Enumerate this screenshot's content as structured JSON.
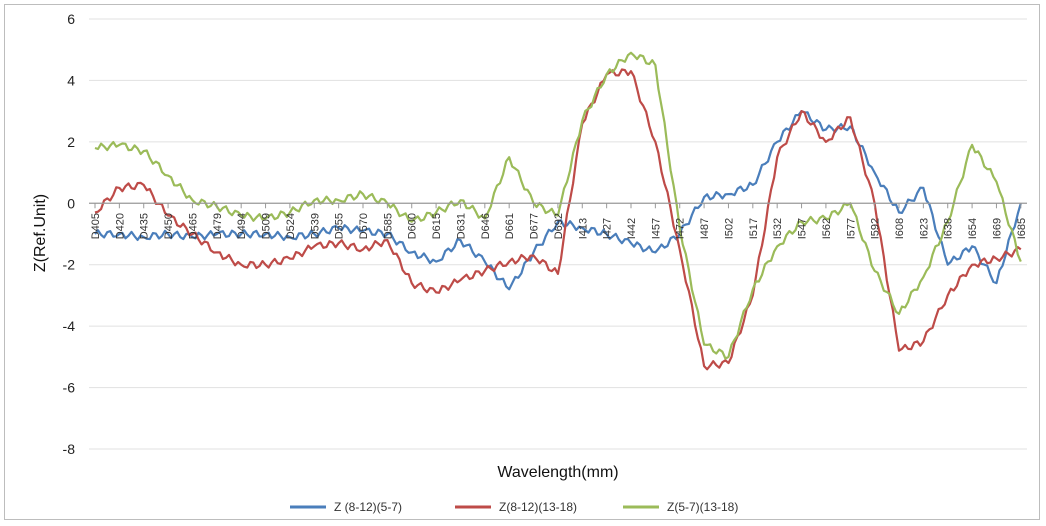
{
  "chart_data": {
    "type": "line",
    "title": "",
    "xlabel": "Wavelength(mm)",
    "ylabel": "Z(Ref.Unit)",
    "ylim": [
      -8,
      6
    ],
    "yticks": [
      6,
      4,
      2,
      0,
      -2,
      -4,
      -6,
      -8
    ],
    "grid": true,
    "legend_position": "bottom",
    "x_tick_labels": [
      "D405",
      "D420",
      "D435",
      "D450",
      "D465",
      "D479",
      "D494",
      "D509",
      "D524",
      "D539",
      "D555",
      "D570",
      "D585",
      "D600",
      "D615",
      "D631",
      "D646",
      "D661",
      "D677",
      "D692",
      "I413",
      "I427",
      "I442",
      "I457",
      "I472",
      "I487",
      "I502",
      "I517",
      "I532",
      "I547",
      "I562",
      "I577",
      "I592",
      "I608",
      "I623",
      "I638",
      "I654",
      "I669",
      "I685"
    ],
    "series": [
      {
        "name": "Z (8-12)(5-7)",
        "color": "#4a7ebb",
        "values": [
          -1.0,
          -1.0,
          -1.1,
          -1.0,
          -1.1,
          -1.0,
          -1.0,
          -1.0,
          -1.1,
          -1.0,
          -0.8,
          -0.9,
          -1.0,
          -1.6,
          -1.9,
          -1.2,
          -1.9,
          -2.8,
          -1.6,
          -0.6,
          -0.8,
          -1.0,
          -1.3,
          -1.6,
          -1.0,
          0.2,
          0.3,
          0.6,
          2.0,
          3.0,
          2.4,
          2.5,
          1.0,
          -0.3,
          0.5,
          -2.0,
          -1.4,
          -2.6,
          0.0
        ]
      },
      {
        "name": "Z(8-12)(13-18)",
        "color": "#be4b48",
        "values": [
          -0.3,
          0.5,
          0.6,
          -0.4,
          -1.0,
          -1.6,
          -2.0,
          -2.0,
          -1.8,
          -1.4,
          -1.3,
          -1.5,
          -1.2,
          -2.6,
          -2.9,
          -2.5,
          -2.2,
          -1.9,
          -1.7,
          -2.3,
          2.6,
          4.2,
          4.3,
          2.0,
          -1.5,
          -5.3,
          -5.2,
          -3.0,
          1.5,
          3.0,
          2.0,
          2.8,
          0.0,
          -4.8,
          -4.5,
          -3.0,
          -2.0,
          -1.8,
          -1.5
        ]
      },
      {
        "name": "Z(5-7)(13-18)",
        "color": "#9bbb59",
        "values": [
          1.8,
          1.9,
          1.7,
          0.9,
          0.1,
          -0.1,
          -0.4,
          -0.5,
          -0.3,
          0.1,
          0.1,
          0.3,
          0.0,
          -0.6,
          -0.3,
          0.1,
          -0.5,
          1.5,
          0.0,
          -0.4,
          2.7,
          4.2,
          4.9,
          4.5,
          -0.8,
          -4.6,
          -5.0,
          -2.8,
          -1.4,
          -0.6,
          -0.5,
          0.0,
          -2.2,
          -3.6,
          -2.4,
          -0.6,
          1.9,
          0.7,
          -1.9
        ]
      }
    ]
  }
}
